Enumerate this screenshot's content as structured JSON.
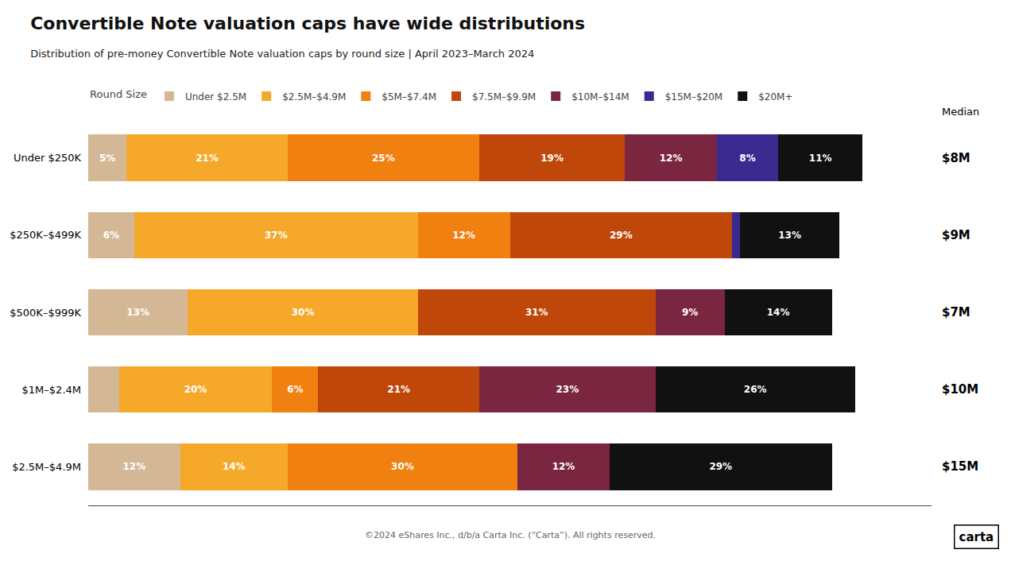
{
  "chart_data": {
    "type": "bar",
    "orientation": "horizontal",
    "stacked": true,
    "title": "Convertible Note valuation caps have wide distributions",
    "subtitle": "Distribution of pre-money Convertible Note valuation caps by round size | April 2023–March 2024",
    "footer": "©2024 eShares Inc., d/b/a Carta Inc. (“Carta”). All rights reserved.",
    "logo": "carta",
    "legend_title": "Round Size",
    "annotation_title": "Median",
    "categories": [
      "Under $250K",
      "$250K–$499K",
      "$500K–$999K",
      "$1M–$2.4M",
      "$2.5M–$4.9M"
    ],
    "series": [
      {
        "name": "Under $2.5M",
        "color": "#d4b896",
        "values": [
          5,
          6,
          13,
          4,
          12
        ],
        "value_labels": [
          "5%",
          "6%",
          "13%",
          null,
          "12%"
        ]
      },
      {
        "name": "$2.5M–$4.9M",
        "color": "#f5a82a",
        "values": [
          21,
          37,
          30,
          20,
          14
        ],
        "value_labels": [
          "21%",
          "37%",
          "30%",
          "20%",
          "14%"
        ]
      },
      {
        "name": "$5M–$7.4M",
        "color": "#f08010",
        "values": [
          25,
          12,
          0,
          6,
          30
        ],
        "value_labels": [
          "25%",
          "12%",
          null,
          "6%",
          "30%"
        ]
      },
      {
        "name": "$7.5M–$9.9M",
        "color": "#c0470a",
        "values": [
          19,
          29,
          31,
          21,
          0
        ],
        "value_labels": [
          "19%",
          "29%",
          "31%",
          "21%",
          null
        ]
      },
      {
        "name": "$10M–$14M",
        "color": "#7b2640",
        "values": [
          12,
          0,
          9,
          23,
          12
        ],
        "value_labels": [
          "12%",
          null,
          "9%",
          "23%",
          "12%"
        ]
      },
      {
        "name": "$15M–$20M",
        "color": "#3a2a90",
        "values": [
          8,
          1,
          0,
          0,
          0
        ],
        "value_labels": [
          "8%",
          null,
          null,
          null,
          null
        ]
      },
      {
        "name": "$20M+",
        "color": "#111111",
        "values": [
          11,
          13,
          14,
          26,
          29
        ],
        "value_labels": [
          "11%",
          "13%",
          "14%",
          "26%",
          "29%"
        ]
      }
    ],
    "annotations": [
      {
        "category": "Under $250K",
        "text": "$8M"
      },
      {
        "category": "$250K–$499K",
        "text": "$9M"
      },
      {
        "category": "$500K–$999K",
        "text": "$7M"
      },
      {
        "category": "$1M–$2.4M",
        "text": "$10M"
      },
      {
        "category": "$2.5M–$4.9M",
        "text": "$15M"
      }
    ],
    "xlim": [
      0,
      110
    ],
    "data_labels": true,
    "tick_labels": "y",
    "grid": false,
    "legend": "top"
  }
}
